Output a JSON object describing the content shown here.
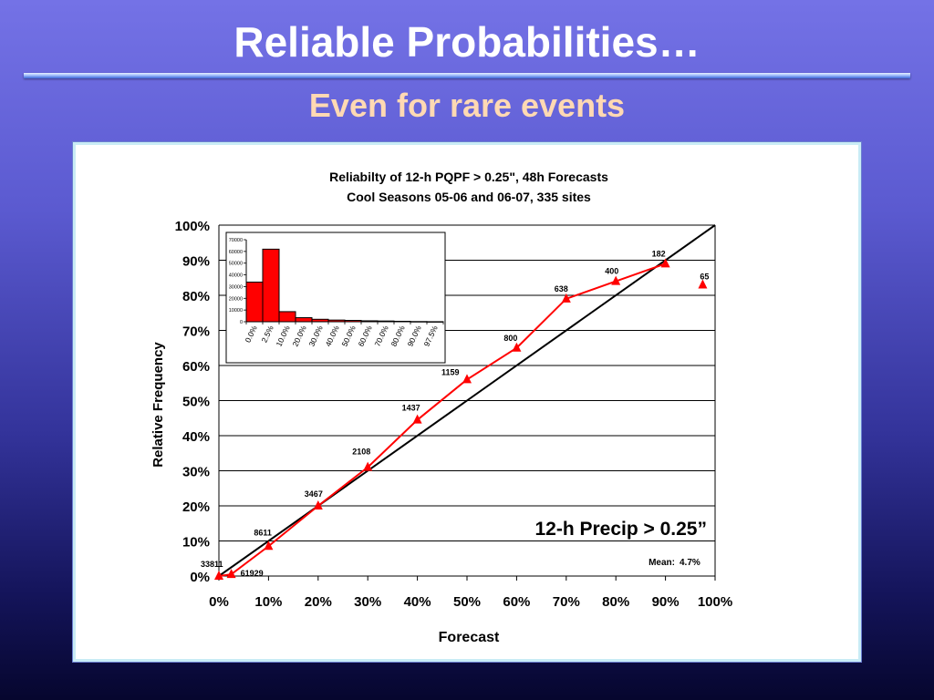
{
  "slide": {
    "title": "Reliable Probabilities…",
    "subtitle": "Even for rare events"
  },
  "chart_data": [
    {
      "type": "line",
      "title": "Reliabilty of 12-h PQPF > 0.25\", 48h Forecasts",
      "subtitle": "Cool Seasons 05-06 and 06-07, 335 sites",
      "xlabel": "Forecast",
      "ylabel": "Relative Frequency",
      "xlim": [
        0,
        100
      ],
      "ylim": [
        0,
        100
      ],
      "x_ticks": [
        "0%",
        "10%",
        "20%",
        "30%",
        "40%",
        "50%",
        "60%",
        "70%",
        "80%",
        "90%",
        "100%"
      ],
      "y_ticks": [
        "0%",
        "10%",
        "20%",
        "30%",
        "40%",
        "50%",
        "60%",
        "70%",
        "80%",
        "90%",
        "100%"
      ],
      "grid": "horizontal",
      "colors": {
        "reliability": "#ff0000",
        "perfect": "#000000"
      },
      "series": [
        {
          "x": [
            0,
            2.5,
            10,
            20,
            30,
            40,
            50,
            60,
            70,
            80,
            90,
            97.5
          ],
          "y": [
            0,
            0.5,
            8.5,
            20,
            31,
            44.5,
            56,
            65,
            79,
            84,
            89,
            83
          ],
          "point_labels": [
            "33811",
            "61929",
            "8611",
            "3467",
            "2108",
            "1437",
            "1159",
            "800",
            "638",
            "400",
            "182",
            "65"
          ],
          "connected_points": 11
        }
      ],
      "reference_line": {
        "from": [
          0,
          0
        ],
        "to": [
          100,
          100
        ]
      },
      "annotation": "12-h  Precip > 0.25”",
      "mean_label": "Mean:",
      "mean_value": "4.7%"
    },
    {
      "type": "bar",
      "categories": [
        "0.0%",
        "2.5%",
        "10.0%",
        "20.0%",
        "30.0%",
        "40.0%",
        "50.0%",
        "60.0%",
        "70.0%",
        "80.0%",
        "90.0%",
        "97.5%"
      ],
      "values": [
        33811,
        61929,
        8611,
        3467,
        2108,
        1437,
        1159,
        800,
        638,
        400,
        182,
        65
      ],
      "ylim": [
        0,
        70000
      ],
      "y_ticks": [
        "0",
        "10000",
        "20000",
        "30000",
        "40000",
        "50000",
        "60000",
        "70000"
      ],
      "colors": {
        "bar": "#ff0000"
      }
    }
  ]
}
